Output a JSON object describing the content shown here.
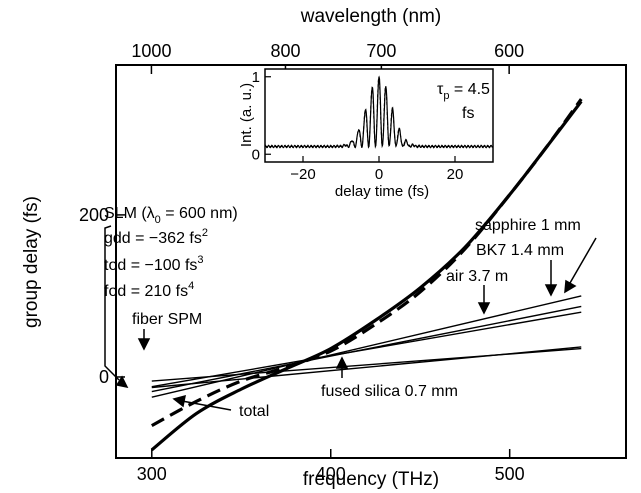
{
  "chart_data": {
    "type": "line",
    "xlabel": "frequency (THz)",
    "ylabel": "group delay (fs)",
    "x2label": "wavelength (nm)",
    "xlim": [
      280,
      565
    ],
    "ylim": [
      -100,
      385
    ],
    "x_ticks": [
      300,
      400,
      500
    ],
    "y_ticks": [
      0,
      200
    ],
    "x2_tick_labels": [
      "1000",
      "800",
      "700",
      "600"
    ],
    "x2_tick_freqs_THz": [
      299.8,
      374.7,
      428.3,
      499.7
    ],
    "series": [
      {
        "name": "total",
        "style": "solid-thick",
        "x": [
          300,
          325,
          350,
          375,
          400,
          425,
          450,
          475,
          500,
          520,
          540
        ],
        "y": [
          -90,
          -45,
          -15,
          10,
          35,
          70,
          110,
          160,
          225,
          282,
          340
        ]
      },
      {
        "name": "SLM",
        "style": "dashed-thick",
        "x": [
          300,
          325,
          350,
          375,
          400,
          425,
          450,
          475,
          500,
          520,
          540
        ],
        "y": [
          -60,
          -30,
          -5,
          12,
          32,
          65,
          105,
          158,
          225,
          282,
          343
        ]
      },
      {
        "name": "sapphire 1 mm",
        "style": "solid",
        "x": [
          300,
          540
        ],
        "y": [
          -25,
          100
        ]
      },
      {
        "name": "BK7 1.4 mm",
        "style": "solid",
        "x": [
          300,
          540
        ],
        "y": [
          -18,
          87
        ]
      },
      {
        "name": "air 3.7 m",
        "style": "solid",
        "x": [
          300,
          540
        ],
        "y": [
          -12,
          80
        ]
      },
      {
        "name": "fiber SPM",
        "style": "solid",
        "x": [
          300,
          540
        ],
        "y": [
          -5,
          35
        ]
      },
      {
        "name": "fused silica 0.7 mm",
        "style": "solid",
        "x": [
          300,
          540
        ],
        "y": [
          -13,
          37
        ]
      }
    ],
    "annotations": {
      "slm_line1": "SLM (λ",
      "slm_sub": "0",
      "slm_line1_end": " = 600 nm)",
      "gdd": "gdd = −362 fs",
      "gdd_exp": "2",
      "tod": "tod = −100 fs",
      "tod_exp": "3",
      "fod": "fod = 210 fs",
      "fod_exp": "4",
      "fiber": "fiber SPM",
      "sapphire": "sapphire 1 mm",
      "bk7": "BK7 1.4 mm",
      "air": "air 3.7 m",
      "fused": "fused silica 0.7 mm",
      "total": "total"
    },
    "inset": {
      "xlabel": "delay time (fs)",
      "ylabel": "Int. (a. u.)",
      "xlim": [
        -30,
        30
      ],
      "ylim": [
        -0.1,
        1.1
      ],
      "x_ticks": [
        -20,
        0,
        20
      ],
      "y_ticks": [
        0,
        1
      ],
      "tau_label": "τ",
      "tau_sub": "p",
      "tau_value": " = 4.5",
      "tau_unit": "fs",
      "pulse_center": 0,
      "pulse_period_fs": 1.8,
      "pulse_width_fs": 4.5,
      "baseline": 0.1
    }
  }
}
